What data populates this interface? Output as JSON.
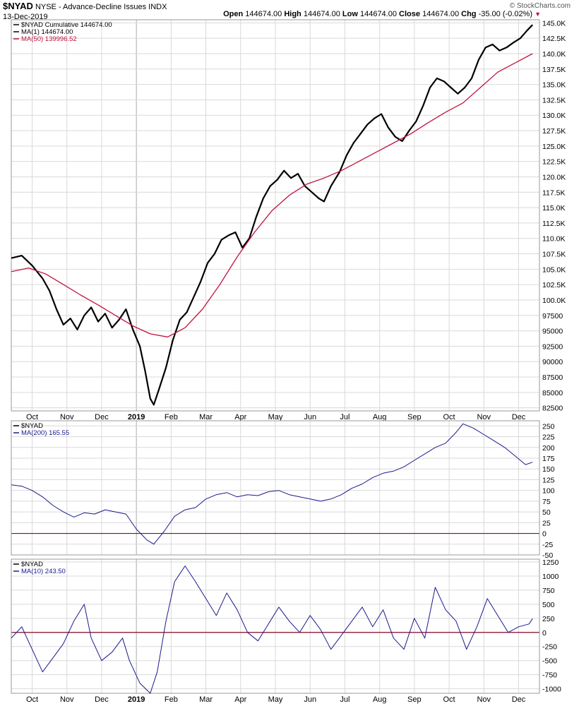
{
  "header": {
    "symbol": "$NYAD",
    "name": "NYSE - Advance-Decline Issues",
    "exchange": "INDX",
    "date": "13-Dec-2019",
    "open_label": "Open",
    "open": "144674.00",
    "high_label": "High",
    "high": "144674.00",
    "low_label": "Low",
    "low": "144674.00",
    "close_label": "Close",
    "close": "144674.00",
    "chg_label": "Chg",
    "chg": "-35.00 (-0.02%)",
    "watermark": "© StockCharts.com"
  },
  "colors": {
    "price": "#000000",
    "ma50": "#c0143c",
    "osc": "#1a1a8c",
    "zero": "#8b0a2a",
    "grid": "#d9d9d9",
    "border": "#999999",
    "year_line": "#aaaaaa"
  },
  "chart_data": [
    {
      "type": "line",
      "panel": "main",
      "legend": [
        {
          "text": "$NYAD Cumulative 144674.00",
          "color": "#000000"
        },
        {
          "text": "MA(1) 144674.00",
          "color": "#000000"
        },
        {
          "text": "MA(50) 139996.52",
          "color": "#c0143c"
        }
      ],
      "x_labels": [
        "Oct",
        "Nov",
        "Dec",
        "2019",
        "Feb",
        "Mar",
        "Apr",
        "May",
        "Jun",
        "Jul",
        "Aug",
        "Sep",
        "Oct",
        "Nov",
        "Dec"
      ],
      "y_ticks": [
        "145.0K",
        "142.5K",
        "140.0K",
        "137.5K",
        "135.0K",
        "132.5K",
        "130.0K",
        "127.5K",
        "125.0K",
        "122.5K",
        "120.0K",
        "117.5K",
        "115.0K",
        "112.5K",
        "110.0K",
        "107.5K",
        "105.0K",
        "102.5K",
        "100.0K",
        "97500",
        "95000",
        "92500",
        "90000",
        "87500",
        "85000",
        "82500"
      ],
      "ylim": [
        82000,
        145500
      ],
      "xlim": [
        0,
        15.2
      ],
      "series": [
        {
          "name": "$NYAD Cumulative",
          "points": [
            [
              0,
              106800
            ],
            [
              0.3,
              107200
            ],
            [
              0.6,
              105600
            ],
            [
              0.9,
              103500
            ],
            [
              1.1,
              101500
            ],
            [
              1.3,
              98500
            ],
            [
              1.5,
              96000
            ],
            [
              1.7,
              97000
            ],
            [
              1.9,
              95200
            ],
            [
              2.1,
              97500
            ],
            [
              2.3,
              98800
            ],
            [
              2.5,
              96500
            ],
            [
              2.7,
              97800
            ],
            [
              2.9,
              95500
            ],
            [
              3.1,
              96800
            ],
            [
              3.3,
              98500
            ],
            [
              3.5,
              95200
            ],
            [
              3.7,
              92500
            ],
            [
              3.85,
              88500
            ],
            [
              4.0,
              84000
            ],
            [
              4.1,
              83000
            ],
            [
              4.25,
              85500
            ],
            [
              4.45,
              89000
            ],
            [
              4.65,
              93500
            ],
            [
              4.85,
              96800
            ],
            [
              5.05,
              98000
            ],
            [
              5.25,
              100500
            ],
            [
              5.45,
              103000
            ],
            [
              5.65,
              106000
            ],
            [
              5.85,
              107500
            ],
            [
              6.05,
              109800
            ],
            [
              6.25,
              110500
            ],
            [
              6.45,
              111000
            ],
            [
              6.65,
              108500
            ],
            [
              6.85,
              110000
            ],
            [
              7.05,
              113500
            ],
            [
              7.25,
              116500
            ],
            [
              7.45,
              118500
            ],
            [
              7.65,
              119500
            ],
            [
              7.85,
              121000
            ],
            [
              8.05,
              119800
            ],
            [
              8.25,
              120500
            ],
            [
              8.45,
              118500
            ],
            [
              8.65,
              117500
            ],
            [
              8.85,
              116500
            ],
            [
              9.0,
              116000
            ],
            [
              9.2,
              118500
            ],
            [
              9.45,
              120800
            ],
            [
              9.65,
              123500
            ],
            [
              9.85,
              125500
            ],
            [
              10.05,
              127000
            ],
            [
              10.25,
              128500
            ],
            [
              10.45,
              129500
            ],
            [
              10.65,
              130200
            ],
            [
              10.85,
              128000
            ],
            [
              11.05,
              126500
            ],
            [
              11.25,
              125800
            ],
            [
              11.45,
              127500
            ],
            [
              11.65,
              129000
            ],
            [
              11.85,
              131500
            ],
            [
              12.05,
              134500
            ],
            [
              12.25,
              136000
            ],
            [
              12.45,
              135500
            ],
            [
              12.65,
              134500
            ],
            [
              12.85,
              133500
            ],
            [
              13.05,
              134500
            ],
            [
              13.25,
              136000
            ],
            [
              13.45,
              139000
            ],
            [
              13.65,
              141000
            ],
            [
              13.85,
              141500
            ],
            [
              14.05,
              140500
            ],
            [
              14.25,
              141000
            ],
            [
              14.45,
              141800
            ],
            [
              14.65,
              142500
            ],
            [
              14.85,
              143800
            ],
            [
              15.0,
              144674
            ]
          ]
        },
        {
          "name": "MA(50)",
          "points": [
            [
              0,
              104600
            ],
            [
              0.5,
              105200
            ],
            [
              1.0,
              104200
            ],
            [
              1.5,
              102500
            ],
            [
              2.0,
              100800
            ],
            [
              2.5,
              99200
            ],
            [
              3.0,
              97500
            ],
            [
              3.5,
              95800
            ],
            [
              4.0,
              94500
            ],
            [
              4.5,
              94000
            ],
            [
              5.0,
              95500
            ],
            [
              5.5,
              98500
            ],
            [
              6.0,
              102500
            ],
            [
              6.5,
              107000
            ],
            [
              7.0,
              111000
            ],
            [
              7.5,
              114500
            ],
            [
              8.0,
              117000
            ],
            [
              8.5,
              118800
            ],
            [
              9.0,
              119800
            ],
            [
              9.5,
              121000
            ],
            [
              10.0,
              122500
            ],
            [
              10.5,
              124000
            ],
            [
              11.0,
              125500
            ],
            [
              11.5,
              127000
            ],
            [
              12.0,
              128800
            ],
            [
              12.5,
              130500
            ],
            [
              13.0,
              132000
            ],
            [
              13.5,
              134500
            ],
            [
              14.0,
              137000
            ],
            [
              14.5,
              138500
            ],
            [
              15.0,
              139997
            ]
          ]
        }
      ]
    },
    {
      "type": "line",
      "panel": "oscillator-1",
      "legend": [
        {
          "text": "$NYAD",
          "color": "#000000"
        },
        {
          "text": "MA(200) 165.55",
          "color": "#1a1a8c"
        }
      ],
      "y_ticks": [
        "250",
        "225",
        "200",
        "175",
        "150",
        "125",
        "100",
        "75",
        "50",
        "25",
        "0",
        "-25",
        "-50"
      ],
      "ylim": [
        -50,
        262
      ],
      "xlim": [
        0,
        15.2
      ],
      "series": [
        {
          "name": "MA(200)",
          "points": [
            [
              0,
              113
            ],
            [
              0.3,
              110
            ],
            [
              0.6,
              100
            ],
            [
              0.9,
              85
            ],
            [
              1.2,
              65
            ],
            [
              1.5,
              50
            ],
            [
              1.8,
              38
            ],
            [
              2.1,
              48
            ],
            [
              2.4,
              45
            ],
            [
              2.7,
              55
            ],
            [
              3.0,
              50
            ],
            [
              3.3,
              45
            ],
            [
              3.6,
              10
            ],
            [
              3.9,
              -15
            ],
            [
              4.1,
              -25
            ],
            [
              4.4,
              5
            ],
            [
              4.7,
              40
            ],
            [
              5.0,
              55
            ],
            [
              5.3,
              60
            ],
            [
              5.6,
              80
            ],
            [
              5.9,
              90
            ],
            [
              6.2,
              95
            ],
            [
              6.5,
              85
            ],
            [
              6.8,
              90
            ],
            [
              7.1,
              88
            ],
            [
              7.4,
              97
            ],
            [
              7.7,
              100
            ],
            [
              8.0,
              90
            ],
            [
              8.3,
              85
            ],
            [
              8.6,
              80
            ],
            [
              8.9,
              75
            ],
            [
              9.2,
              80
            ],
            [
              9.5,
              90
            ],
            [
              9.8,
              105
            ],
            [
              10.1,
              115
            ],
            [
              10.4,
              130
            ],
            [
              10.7,
              140
            ],
            [
              11.0,
              145
            ],
            [
              11.3,
              155
            ],
            [
              11.6,
              170
            ],
            [
              11.9,
              185
            ],
            [
              12.2,
              200
            ],
            [
              12.5,
              210
            ],
            [
              12.8,
              235
            ],
            [
              13.0,
              255
            ],
            [
              13.3,
              245
            ],
            [
              13.6,
              230
            ],
            [
              13.9,
              215
            ],
            [
              14.2,
              200
            ],
            [
              14.5,
              180
            ],
            [
              14.8,
              160
            ],
            [
              15.0,
              165.55
            ]
          ]
        }
      ]
    },
    {
      "type": "line",
      "panel": "oscillator-2",
      "legend": [
        {
          "text": "$NYAD",
          "color": "#000000"
        },
        {
          "text": "MA(10) 243.50",
          "color": "#1a1a8c"
        }
      ],
      "x_labels": [
        "Oct",
        "Nov",
        "Dec",
        "2019",
        "Feb",
        "Mar",
        "Apr",
        "May",
        "Jun",
        "Jul",
        "Aug",
        "Sep",
        "Oct",
        "Nov",
        "Dec"
      ],
      "y_ticks": [
        "1250",
        "1000",
        "750",
        "500",
        "250",
        "0",
        "-250",
        "-500",
        "-750",
        "-1000"
      ],
      "ylim": [
        -1080,
        1300
      ],
      "xlim": [
        0,
        15.2
      ],
      "series": [
        {
          "name": "MA(10)",
          "points": [
            [
              0,
              -100
            ],
            [
              0.3,
              100
            ],
            [
              0.6,
              -300
            ],
            [
              0.9,
              -700
            ],
            [
              1.2,
              -450
            ],
            [
              1.5,
              -200
            ],
            [
              1.8,
              200
            ],
            [
              2.1,
              500
            ],
            [
              2.3,
              -100
            ],
            [
              2.6,
              -500
            ],
            [
              2.9,
              -350
            ],
            [
              3.2,
              -100
            ],
            [
              3.4,
              -500
            ],
            [
              3.7,
              -900
            ],
            [
              4.0,
              -1080
            ],
            [
              4.2,
              -700
            ],
            [
              4.45,
              200
            ],
            [
              4.7,
              900
            ],
            [
              5.0,
              1180
            ],
            [
              5.3,
              900
            ],
            [
              5.6,
              600
            ],
            [
              5.9,
              300
            ],
            [
              6.2,
              700
            ],
            [
              6.5,
              400
            ],
            [
              6.8,
              0
            ],
            [
              7.1,
              -150
            ],
            [
              7.4,
              150
            ],
            [
              7.7,
              450
            ],
            [
              8.0,
              200
            ],
            [
              8.3,
              0
            ],
            [
              8.6,
              300
            ],
            [
              8.9,
              50
            ],
            [
              9.2,
              -300
            ],
            [
              9.5,
              -50
            ],
            [
              9.8,
              200
            ],
            [
              10.1,
              450
            ],
            [
              10.4,
              100
            ],
            [
              10.7,
              400
            ],
            [
              11.0,
              -100
            ],
            [
              11.3,
              -300
            ],
            [
              11.6,
              250
            ],
            [
              11.9,
              -100
            ],
            [
              12.2,
              800
            ],
            [
              12.5,
              400
            ],
            [
              12.8,
              200
            ],
            [
              13.1,
              -300
            ],
            [
              13.4,
              100
            ],
            [
              13.7,
              600
            ],
            [
              14.0,
              300
            ],
            [
              14.3,
              0
            ],
            [
              14.6,
              100
            ],
            [
              14.9,
              150
            ],
            [
              15.0,
              243.5
            ]
          ]
        }
      ]
    }
  ]
}
